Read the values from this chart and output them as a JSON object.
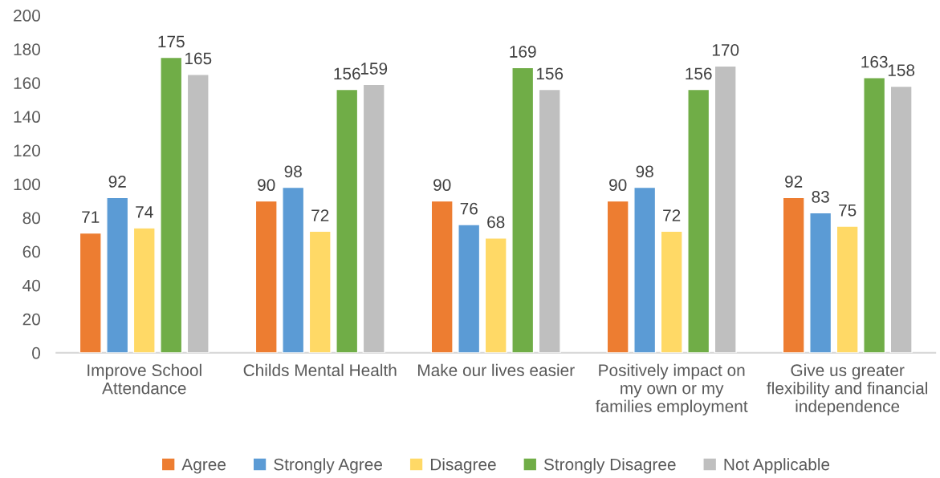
{
  "chart_data": {
    "type": "bar",
    "categories": [
      "Improve School\nAttendance",
      "Childs Mental Health",
      "Make our lives easier",
      "Positively impact on\nmy own or my\nfamilies employment",
      "Give us greater\nflexibility and financial\nindependence"
    ],
    "series": [
      {
        "name": "Agree",
        "color": "#ed7d31",
        "values": [
          71,
          90,
          90,
          90,
          92
        ]
      },
      {
        "name": "Strongly Agree",
        "color": "#5b9bd5",
        "values": [
          92,
          98,
          76,
          98,
          83
        ]
      },
      {
        "name": "Disagree",
        "color": "#ffd966",
        "values": [
          74,
          72,
          68,
          72,
          75
        ]
      },
      {
        "name": "Strongly Disagree",
        "color": "#70ad47",
        "values": [
          175,
          156,
          169,
          156,
          163
        ]
      },
      {
        "name": "Not Applicable",
        "color": "#bfbfbf",
        "values": [
          165,
          159,
          156,
          170,
          158
        ]
      }
    ],
    "ylim": [
      0,
      200
    ],
    "yticks": [
      0,
      20,
      40,
      60,
      80,
      100,
      120,
      140,
      160,
      180,
      200
    ],
    "data_labels": true,
    "grid": false,
    "legend": "bottom"
  }
}
